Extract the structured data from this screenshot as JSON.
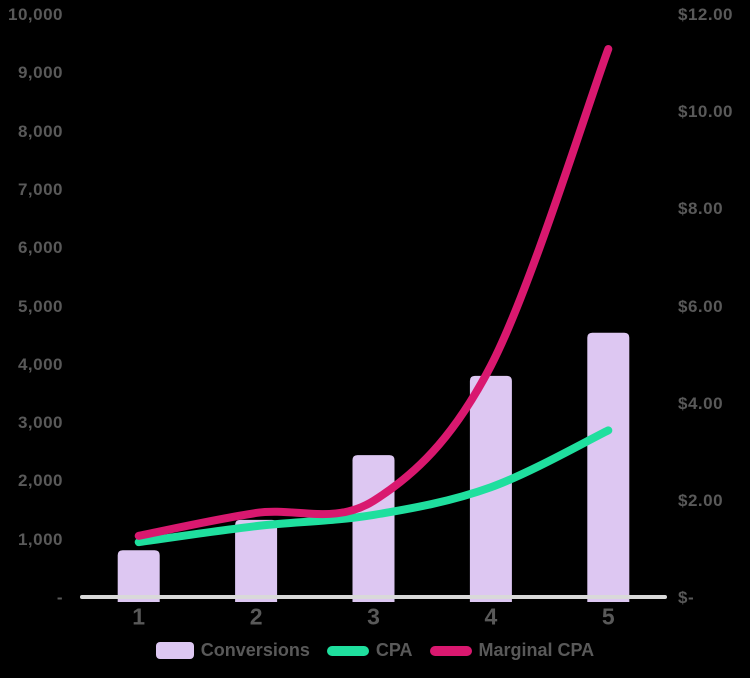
{
  "chart_data": {
    "type": "combo",
    "title": "",
    "categories": [
      "1",
      "2",
      "3",
      "4",
      "5"
    ],
    "series": [
      {
        "name": "Conversions",
        "chart": "bar",
        "axis": "left",
        "color": "#ddc7f2",
        "values": [
          820,
          1340,
          2450,
          3810,
          4550
        ]
      },
      {
        "name": "CPA",
        "chart": "line",
        "axis": "right",
        "color": "#1fdf9e",
        "values": [
          1.15,
          1.48,
          1.71,
          2.28,
          3.45
        ]
      },
      {
        "name": "Marginal CPA",
        "chart": "line",
        "axis": "right",
        "color": "#d9186f",
        "values": [
          1.28,
          1.75,
          2.0,
          4.78,
          11.3
        ]
      }
    ],
    "left_axis": {
      "range": [
        0,
        10000
      ],
      "ticks": [
        {
          "value": 10000,
          "label": "10,000"
        },
        {
          "value": 9000,
          "label": "9,000"
        },
        {
          "value": 8000,
          "label": "8,000"
        },
        {
          "value": 7000,
          "label": "7,000"
        },
        {
          "value": 6000,
          "label": "6,000"
        },
        {
          "value": 5000,
          "label": "5,000"
        },
        {
          "value": 4000,
          "label": "4,000"
        },
        {
          "value": 3000,
          "label": "3,000"
        },
        {
          "value": 2000,
          "label": "2,000"
        },
        {
          "value": 1000,
          "label": "1,000"
        },
        {
          "value": 0,
          "label": "-"
        }
      ]
    },
    "right_axis": {
      "range": [
        0,
        12
      ],
      "ticks": [
        {
          "value": 12,
          "label": "$12.00"
        },
        {
          "value": 10,
          "label": "$10.00"
        },
        {
          "value": 8,
          "label": "$8.00"
        },
        {
          "value": 6,
          "label": "$6.00"
        },
        {
          "value": 4,
          "label": "$4.00"
        },
        {
          "value": 2,
          "label": "$2.00"
        },
        {
          "value": 0,
          "label": "$-"
        }
      ]
    },
    "legend": {
      "position": "bottom",
      "items": [
        "Conversions",
        "CPA",
        "Marginal CPA"
      ]
    },
    "grid": false,
    "colors": {
      "axis_line": "#d9d9d9",
      "text": "#595959",
      "background": "#000000"
    }
  }
}
